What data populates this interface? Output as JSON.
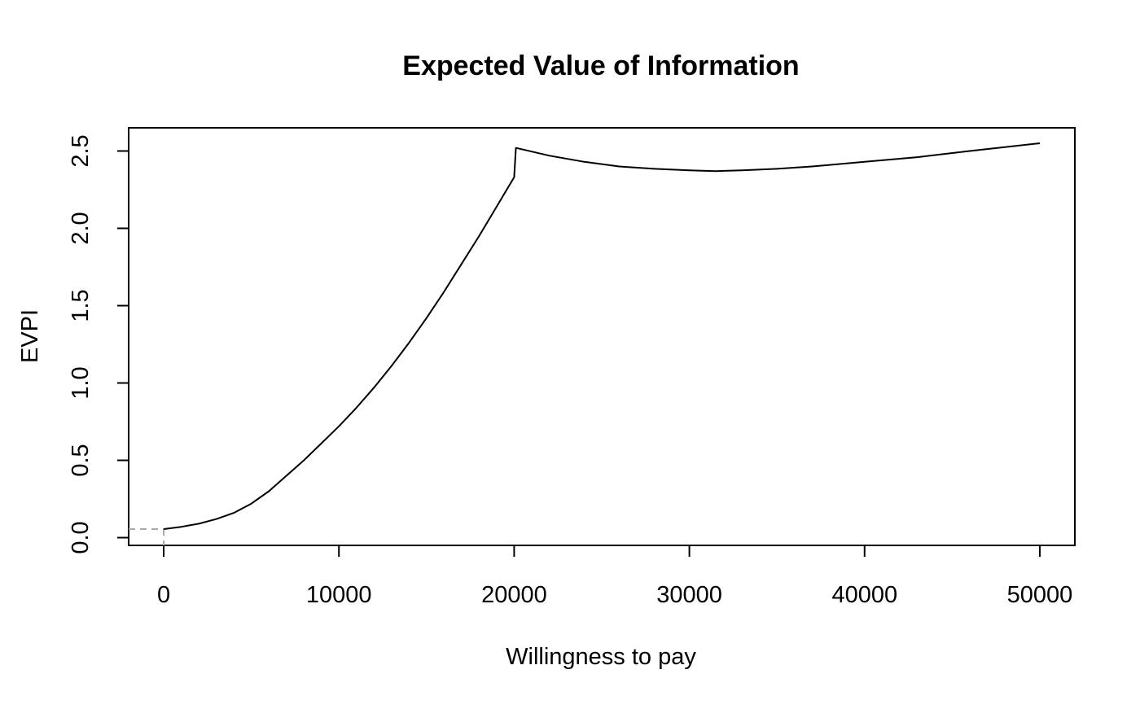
{
  "chart_data": {
    "type": "line",
    "title": "Expected Value of Information",
    "xlabel": "Willingness to pay",
    "ylabel": "EVPI",
    "xlim": [
      -2000,
      52000
    ],
    "ylim": [
      -0.05,
      2.65
    ],
    "x_ticks": [
      0,
      10000,
      20000,
      30000,
      40000,
      50000
    ],
    "x_tick_labels": [
      "0",
      "10000",
      "20000",
      "30000",
      "40000",
      "50000"
    ],
    "y_ticks": [
      0.0,
      0.5,
      1.0,
      1.5,
      2.0,
      2.5
    ],
    "y_tick_labels": [
      "0.0",
      "0.5",
      "1.0",
      "1.5",
      "2.0",
      "2.5"
    ],
    "grid": false,
    "box": true,
    "series": [
      {
        "color": "#000000",
        "x": [
          0,
          1000,
          2000,
          3000,
          4000,
          5000,
          6000,
          7000,
          8000,
          9000,
          10000,
          11000,
          12000,
          13000,
          14000,
          15000,
          16000,
          17000,
          18000,
          19000,
          20000,
          20100,
          22000,
          24000,
          26000,
          28000,
          30000,
          31500,
          33000,
          35000,
          37000,
          40000,
          43000,
          46000,
          50000
        ],
        "y": [
          0.055,
          0.07,
          0.09,
          0.12,
          0.16,
          0.22,
          0.3,
          0.4,
          0.5,
          0.61,
          0.72,
          0.84,
          0.97,
          1.11,
          1.26,
          1.42,
          1.59,
          1.77,
          1.95,
          2.14,
          2.33,
          2.52,
          2.47,
          2.43,
          2.4,
          2.385,
          2.375,
          2.37,
          2.375,
          2.385,
          2.4,
          2.43,
          2.46,
          2.5,
          2.55
        ]
      }
    ],
    "reference_lines": [
      {
        "style": "dashed",
        "color": "#aaaaaa",
        "horizontal_from_x": -2000,
        "x": 0,
        "y": 0.055
      }
    ]
  }
}
